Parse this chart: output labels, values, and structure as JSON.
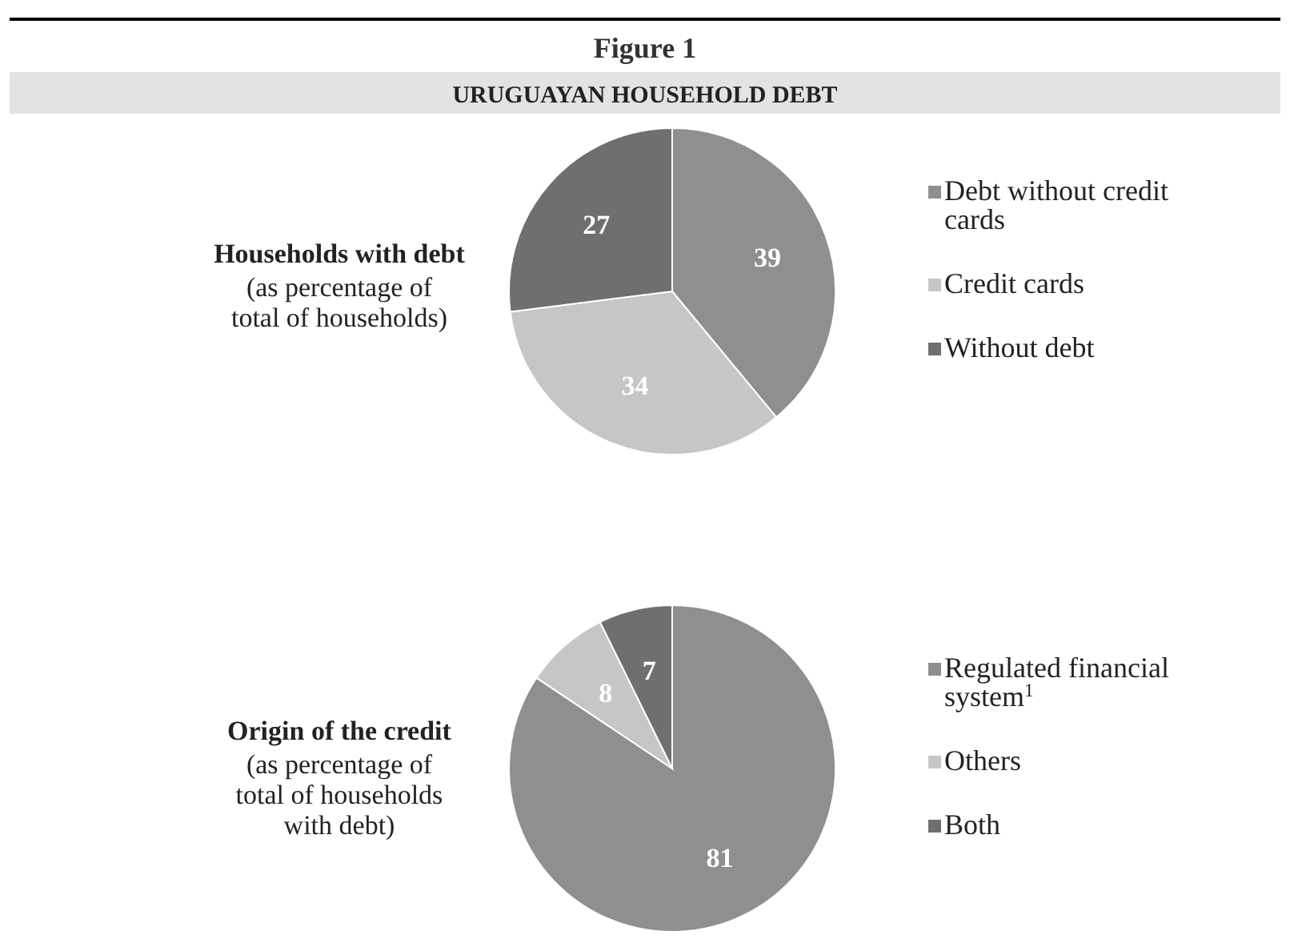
{
  "chart_data": [
    {
      "type": "pie",
      "title": "Households with debt",
      "subtitle": "(as percentage of total of households)",
      "annotations": [
        "Figure 1",
        "URUGUAYAN HOUSEHOLD DEBT"
      ],
      "categories": [
        "Debt without credit cards",
        "Credit cards",
        "Without debt"
      ],
      "values": [
        39,
        34,
        27
      ],
      "colors": [
        "#8f8f8f",
        "#c6c6c6",
        "#6f6f6f"
      ],
      "data_labels": true,
      "legend": "right"
    },
    {
      "type": "pie",
      "title": "Origin of the credit",
      "subtitle": "(as percentage of total of households with debt)",
      "categories": [
        "Regulated financial system$^{1}$",
        "Others",
        "Both"
      ],
      "values": [
        81,
        8,
        7
      ],
      "colors": [
        "#8f8f8f",
        "#c6c6c6",
        "#6f6f6f"
      ],
      "data_labels": true,
      "legend": "right"
    }
  ]
}
